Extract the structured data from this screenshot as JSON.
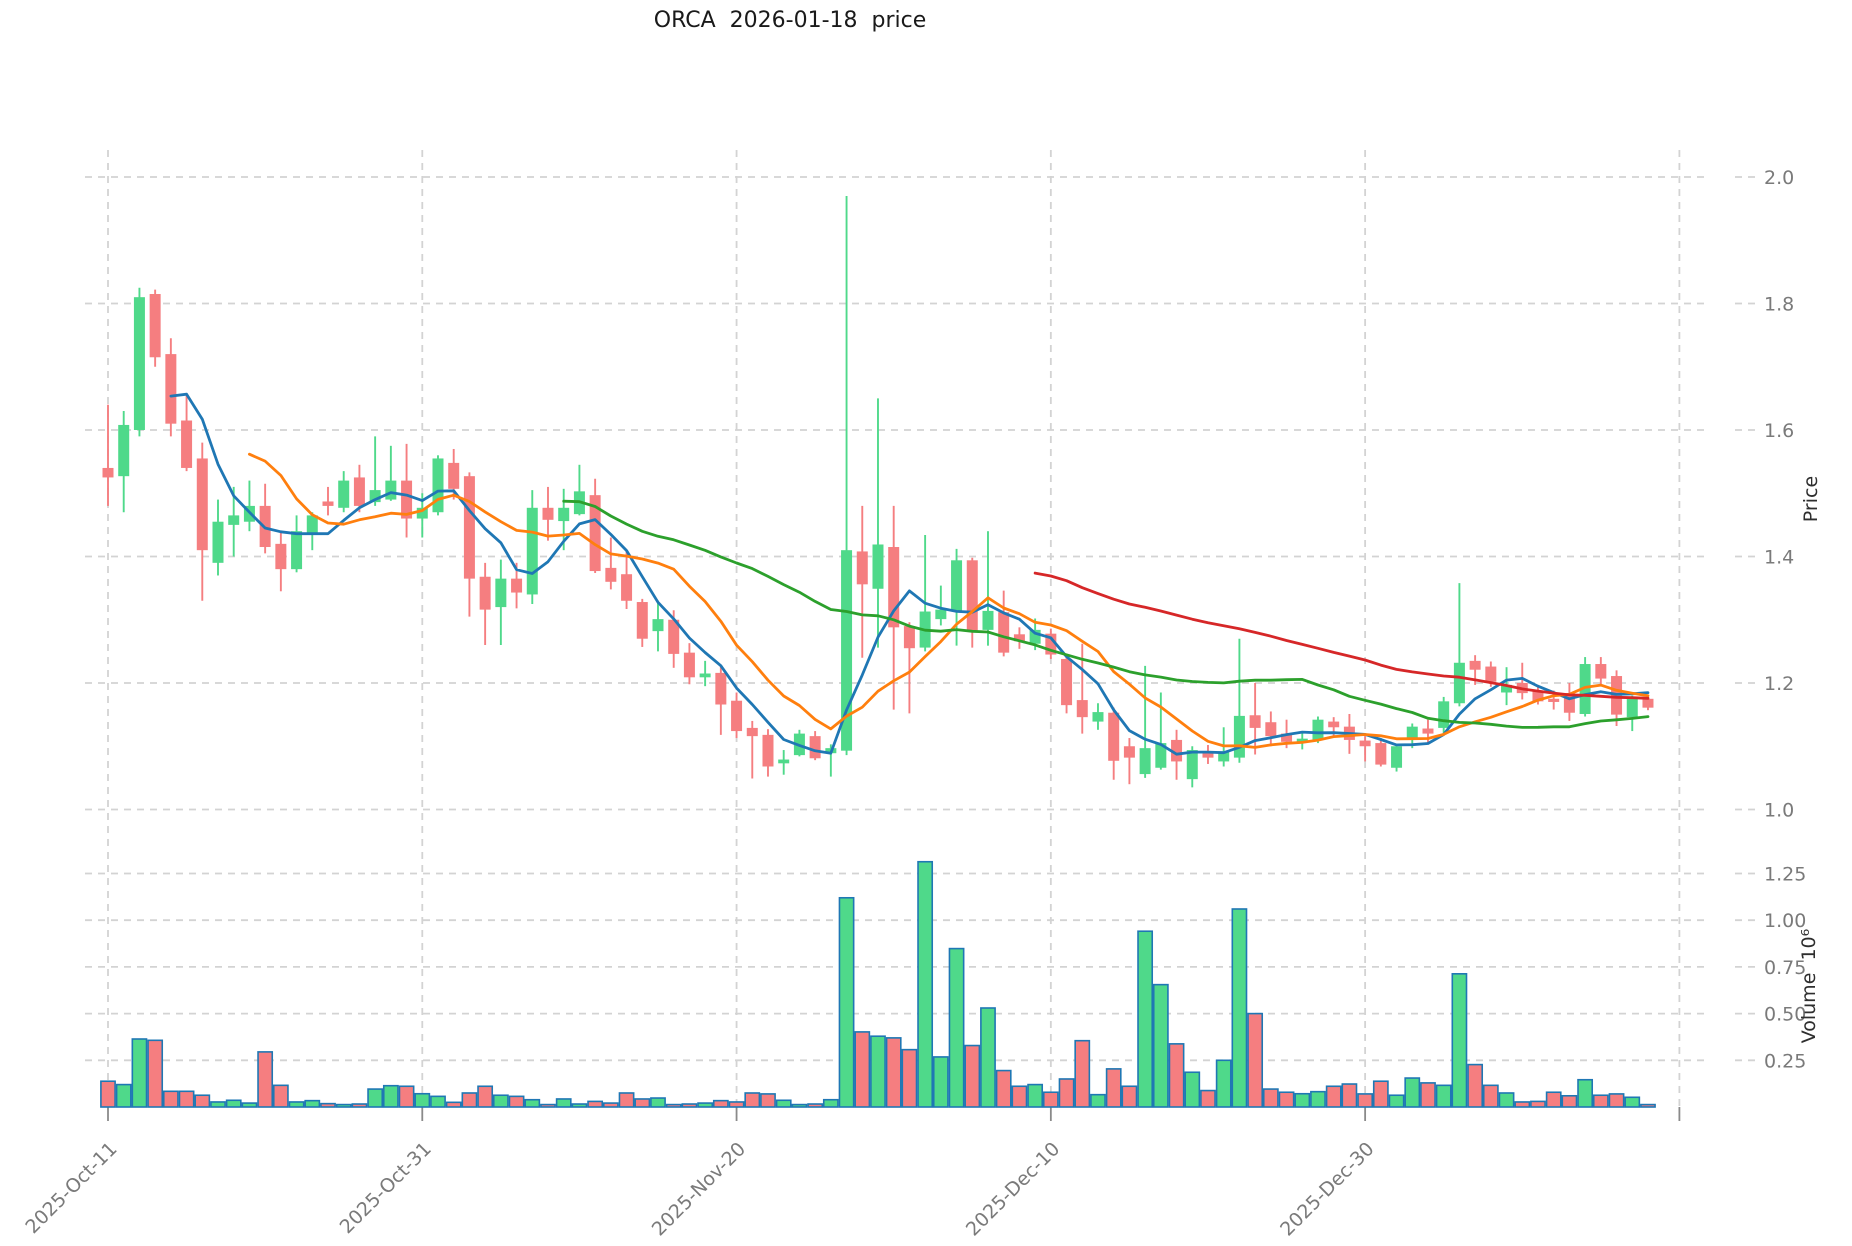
{
  "title": "ORCA  2026-01-18  price",
  "price_axis": {
    "label": "Price",
    "tick_labels": [
      "2.0",
      "1.8",
      "1.6",
      "1.4",
      "1.2",
      "1.0"
    ],
    "tick_values": [
      2.0,
      1.8,
      1.6,
      1.4,
      1.2,
      1.0
    ]
  },
  "volume_axis": {
    "label": "Volume  10⁶",
    "tick_labels": [
      "1.25",
      "1.00",
      "0.75",
      "0.50",
      "0.25"
    ],
    "tick_values": [
      1.25,
      1.0,
      0.75,
      0.5,
      0.25
    ]
  },
  "x_axis": {
    "tick_labels": [
      "2025-Oct-11",
      "2025-Oct-31",
      "2025-Nov-20",
      "2025-Dec-10",
      "2025-Dec-30"
    ],
    "tick_candle_indices": [
      0,
      20,
      40,
      60,
      80,
      100
    ]
  },
  "colors": {
    "up": "#4fd98a",
    "down": "#f57e80",
    "volume_edge": "#1f77b4",
    "ma5": "#1f77b4",
    "ma10": "#ff7f0e",
    "ma30": "#2ca02c",
    "ma60": "#d62728",
    "grid": "#d3d3d3",
    "tick_text": "#7a7a7a",
    "title_text": "#1a1a1a"
  },
  "chart_data": {
    "type": "candlestick",
    "title": "ORCA  2026-01-18  price",
    "panes": [
      "price",
      "volume"
    ],
    "ylabel_price": "Price",
    "ylabel_volume": "Volume  10⁶",
    "price_range": [
      1.0,
      2.0
    ],
    "volume_range_millions": [
      0,
      1.4
    ],
    "grid": "dashed",
    "legend": "none",
    "moving_averages": [
      {
        "period": 5,
        "color": "#1f77b4"
      },
      {
        "period": 10,
        "color": "#ff7f0e"
      },
      {
        "period": 30,
        "color": "#2ca02c"
      },
      {
        "period": 60,
        "color": "#d62728"
      }
    ],
    "candles_format": [
      "open",
      "high",
      "low",
      "close",
      "volume_millions"
    ],
    "candles": [
      [
        1.54,
        1.64,
        1.48,
        1.525,
        0.138
      ],
      [
        1.527,
        1.63,
        1.47,
        1.608,
        0.12
      ],
      [
        1.6,
        1.825,
        1.59,
        1.81,
        0.364
      ],
      [
        1.815,
        1.822,
        1.7,
        1.715,
        0.357
      ],
      [
        1.72,
        1.745,
        1.59,
        1.61,
        0.084
      ],
      [
        1.615,
        1.655,
        1.535,
        1.54,
        0.084
      ],
      [
        1.555,
        1.58,
        1.33,
        1.41,
        0.063
      ],
      [
        1.39,
        1.49,
        1.37,
        1.455,
        0.027
      ],
      [
        1.45,
        1.51,
        1.4,
        1.465,
        0.036
      ],
      [
        1.455,
        1.52,
        1.44,
        1.48,
        0.021
      ],
      [
        1.48,
        1.515,
        1.405,
        1.415,
        0.295
      ],
      [
        1.42,
        1.44,
        1.345,
        1.38,
        0.116
      ],
      [
        1.38,
        1.465,
        1.375,
        1.44,
        0.027
      ],
      [
        1.435,
        1.47,
        1.41,
        1.465,
        0.034
      ],
      [
        1.487,
        1.51,
        1.465,
        1.48,
        0.018
      ],
      [
        1.477,
        1.535,
        1.47,
        1.52,
        0.013
      ],
      [
        1.525,
        1.545,
        1.47,
        1.48,
        0.016
      ],
      [
        1.486,
        1.59,
        1.48,
        1.505,
        0.096
      ],
      [
        1.49,
        1.575,
        1.488,
        1.52,
        0.114
      ],
      [
        1.52,
        1.578,
        1.43,
        1.46,
        0.111
      ],
      [
        1.46,
        1.5,
        1.43,
        1.477,
        0.071
      ],
      [
        1.47,
        1.56,
        1.465,
        1.555,
        0.057
      ],
      [
        1.548,
        1.57,
        1.49,
        1.507,
        0.025
      ],
      [
        1.527,
        1.533,
        1.305,
        1.365,
        0.075
      ],
      [
        1.368,
        1.39,
        1.26,
        1.316,
        0.111
      ],
      [
        1.32,
        1.395,
        1.26,
        1.365,
        0.063
      ],
      [
        1.365,
        1.39,
        1.318,
        1.343,
        0.057
      ],
      [
        1.34,
        1.505,
        1.325,
        1.477,
        0.039
      ],
      [
        1.477,
        1.51,
        1.425,
        1.458,
        0.013
      ],
      [
        1.456,
        1.507,
        1.41,
        1.477,
        0.043
      ],
      [
        1.467,
        1.545,
        1.465,
        1.503,
        0.016
      ],
      [
        1.497,
        1.523,
        1.374,
        1.377,
        0.03
      ],
      [
        1.382,
        1.43,
        1.348,
        1.36,
        0.021
      ],
      [
        1.372,
        1.41,
        1.317,
        1.33,
        0.075
      ],
      [
        1.328,
        1.333,
        1.257,
        1.27,
        0.043
      ],
      [
        1.282,
        1.33,
        1.25,
        1.301,
        0.048
      ],
      [
        1.3,
        1.315,
        1.224,
        1.246,
        0.013
      ],
      [
        1.248,
        1.263,
        1.198,
        1.209,
        0.016
      ],
      [
        1.209,
        1.235,
        1.195,
        1.215,
        0.021
      ],
      [
        1.216,
        1.228,
        1.118,
        1.166,
        0.034
      ],
      [
        1.172,
        1.185,
        1.113,
        1.124,
        0.027
      ],
      [
        1.129,
        1.14,
        1.049,
        1.116,
        0.075
      ],
      [
        1.118,
        1.127,
        1.052,
        1.068,
        0.07
      ],
      [
        1.073,
        1.094,
        1.055,
        1.079,
        0.036
      ],
      [
        1.086,
        1.126,
        1.084,
        1.12,
        0.013
      ],
      [
        1.116,
        1.124,
        1.078,
        1.081,
        0.016
      ],
      [
        1.089,
        1.103,
        1.052,
        1.097,
        0.039
      ],
      [
        1.093,
        1.97,
        1.086,
        1.41,
        1.12
      ],
      [
        1.408,
        1.48,
        1.24,
        1.356,
        0.402
      ],
      [
        1.349,
        1.65,
        1.256,
        1.419,
        0.379
      ],
      [
        1.415,
        1.48,
        1.158,
        1.288,
        0.37
      ],
      [
        1.29,
        1.296,
        1.152,
        1.255,
        0.307
      ],
      [
        1.256,
        1.434,
        1.25,
        1.313,
        1.313
      ],
      [
        1.301,
        1.354,
        1.291,
        1.316,
        0.268
      ],
      [
        1.313,
        1.412,
        1.259,
        1.394,
        0.848
      ],
      [
        1.394,
        1.398,
        1.256,
        1.282,
        0.329
      ],
      [
        1.284,
        1.44,
        1.259,
        1.314,
        0.53
      ],
      [
        1.312,
        1.346,
        1.242,
        1.248,
        0.195
      ],
      [
        1.277,
        1.288,
        1.254,
        1.266,
        0.111
      ],
      [
        1.262,
        1.302,
        1.252,
        1.284,
        0.12
      ],
      [
        1.278,
        1.286,
        1.238,
        1.245,
        0.079
      ],
      [
        1.238,
        1.242,
        1.152,
        1.165,
        0.15
      ],
      [
        1.173,
        1.262,
        1.12,
        1.146,
        0.355
      ],
      [
        1.139,
        1.168,
        1.126,
        1.154,
        0.066
      ],
      [
        1.153,
        1.161,
        1.047,
        1.077,
        0.204
      ],
      [
        1.1,
        1.113,
        1.04,
        1.082,
        0.111
      ],
      [
        1.056,
        1.227,
        1.05,
        1.097,
        0.941
      ],
      [
        1.066,
        1.185,
        1.063,
        1.105,
        0.655
      ],
      [
        1.11,
        1.126,
        1.047,
        1.076,
        0.338
      ],
      [
        1.048,
        1.1,
        1.035,
        1.094,
        0.186
      ],
      [
        1.091,
        1.102,
        1.072,
        1.082,
        0.088
      ],
      [
        1.076,
        1.13,
        1.068,
        1.092,
        0.25
      ],
      [
        1.082,
        1.27,
        1.074,
        1.148,
        1.06
      ],
      [
        1.149,
        1.2,
        1.087,
        1.129,
        0.5
      ],
      [
        1.138,
        1.155,
        1.1,
        1.116,
        0.096
      ],
      [
        1.12,
        1.142,
        1.097,
        1.107,
        0.079
      ],
      [
        1.107,
        1.124,
        1.095,
        1.112,
        0.071
      ],
      [
        1.11,
        1.147,
        1.105,
        1.142,
        0.082
      ],
      [
        1.139,
        1.146,
        1.116,
        1.13,
        0.111
      ],
      [
        1.131,
        1.151,
        1.088,
        1.11,
        0.123
      ],
      [
        1.109,
        1.116,
        1.076,
        1.1,
        0.07
      ],
      [
        1.105,
        1.113,
        1.068,
        1.071,
        0.138
      ],
      [
        1.066,
        1.104,
        1.06,
        1.1,
        0.063
      ],
      [
        1.11,
        1.136,
        1.097,
        1.131,
        0.155
      ],
      [
        1.128,
        1.142,
        1.105,
        1.12,
        0.129
      ],
      [
        1.129,
        1.178,
        1.12,
        1.171,
        0.116
      ],
      [
        1.168,
        1.358,
        1.163,
        1.232,
        0.713
      ],
      [
        1.235,
        1.244,
        1.197,
        1.221,
        0.227
      ],
      [
        1.226,
        1.234,
        1.194,
        1.202,
        0.116
      ],
      [
        1.185,
        1.225,
        1.165,
        1.197,
        0.075
      ],
      [
        1.2,
        1.232,
        1.174,
        1.184,
        0.027
      ],
      [
        1.187,
        1.197,
        1.166,
        1.171,
        0.03
      ],
      [
        1.175,
        1.188,
        1.158,
        1.17,
        0.079
      ],
      [
        1.183,
        1.2,
        1.14,
        1.153,
        0.06
      ],
      [
        1.151,
        1.241,
        1.147,
        1.23,
        0.146
      ],
      [
        1.23,
        1.241,
        1.197,
        1.207,
        0.063
      ],
      [
        1.211,
        1.22,
        1.132,
        1.15,
        0.07
      ],
      [
        1.146,
        1.18,
        1.124,
        1.175,
        0.052
      ],
      [
        1.175,
        1.179,
        1.157,
        1.161,
        0.013
      ]
    ]
  }
}
